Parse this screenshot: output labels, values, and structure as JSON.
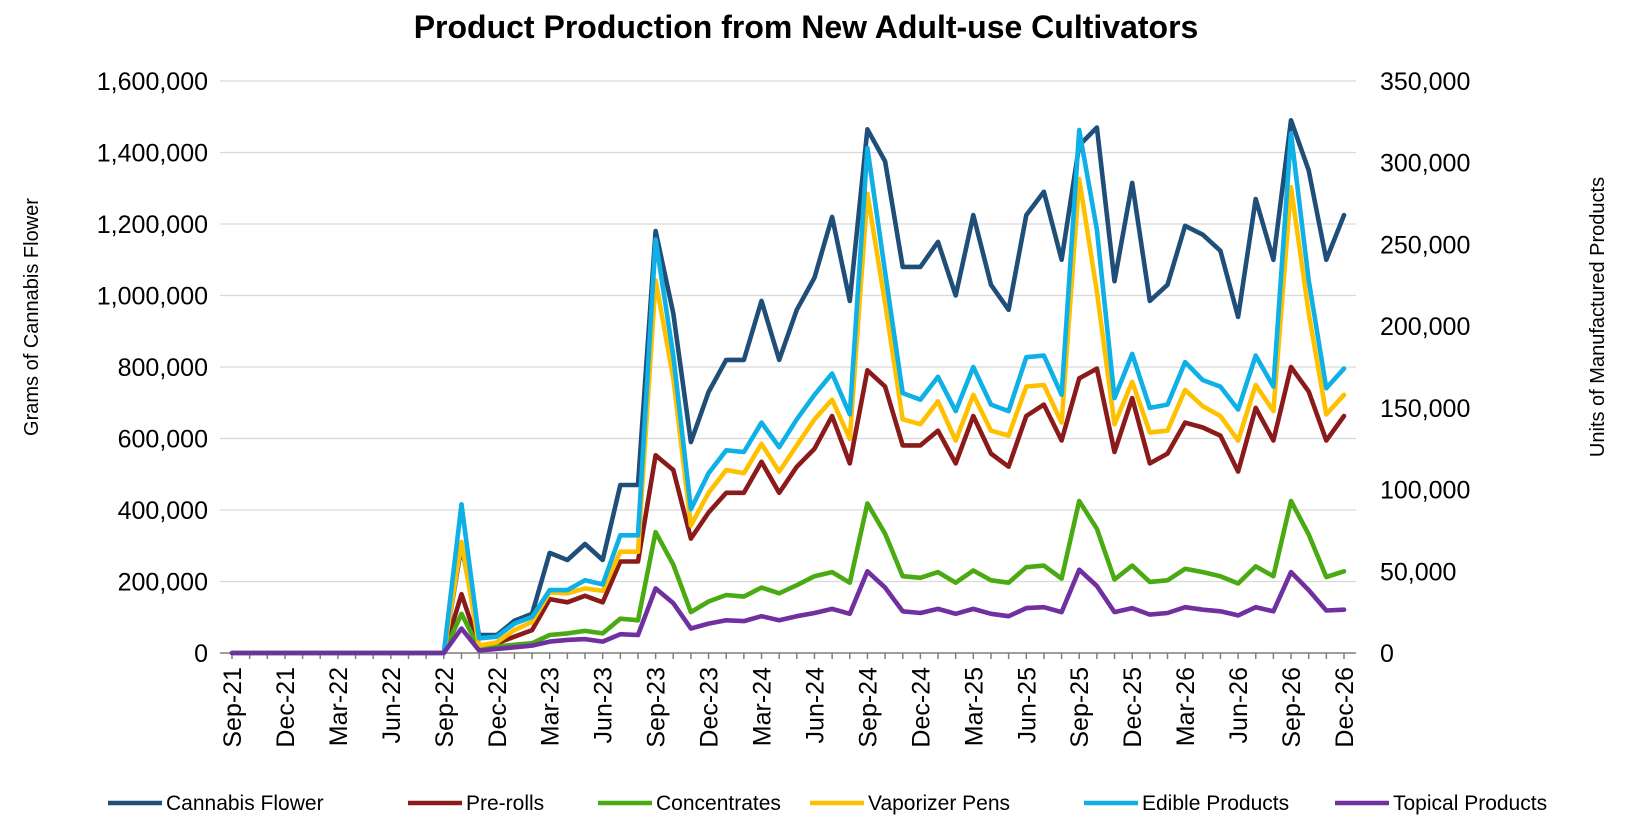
{
  "chart_data": {
    "type": "line",
    "title": "Product Production  from New Adult-use Cultivators",
    "ylabel_left": "Grams of Cannabis Flower",
    "ylabel_right": "Units of  Manufactured Products",
    "ylim_left": [
      0,
      1600000
    ],
    "ylim_right": [
      0,
      350000
    ],
    "yticks_left": [
      0,
      200000,
      400000,
      600000,
      800000,
      1000000,
      1200000,
      1400000,
      1600000
    ],
    "yticks_left_labels": [
      "0",
      "200,000",
      "400,000",
      "600,000",
      "800,000",
      "1,000,000",
      "1,200,000",
      "1,400,000",
      "1,600,000"
    ],
    "yticks_right": [
      0,
      50000,
      100000,
      150000,
      200000,
      250000,
      300000,
      350000
    ],
    "yticks_right_labels": [
      "0",
      "50,000",
      "100,000",
      "150,000",
      "200,000",
      "250,000",
      "300,000",
      "350,000"
    ],
    "grid": "horizontal",
    "legend_position": "bottom",
    "x": [
      "Sep-21",
      "Oct-21",
      "Nov-21",
      "Dec-21",
      "Jan-22",
      "Feb-22",
      "Mar-22",
      "Apr-22",
      "May-22",
      "Jun-22",
      "Jul-22",
      "Aug-22",
      "Sep-22",
      "Oct-22",
      "Nov-22",
      "Dec-22",
      "Jan-23",
      "Feb-23",
      "Mar-23",
      "Apr-23",
      "May-23",
      "Jun-23",
      "Jul-23",
      "Aug-23",
      "Sep-23",
      "Oct-23",
      "Nov-23",
      "Dec-23",
      "Jan-24",
      "Feb-24",
      "Mar-24",
      "Apr-24",
      "May-24",
      "Jun-24",
      "Jul-24",
      "Aug-24",
      "Sep-24",
      "Oct-24",
      "Nov-24",
      "Dec-24",
      "Jan-25",
      "Feb-25",
      "Mar-25",
      "Apr-25",
      "May-25",
      "Jun-25",
      "Jul-25",
      "Aug-25",
      "Sep-25",
      "Oct-25",
      "Nov-25",
      "Dec-25",
      "Jan-26",
      "Feb-26",
      "Mar-26",
      "Apr-26",
      "May-26",
      "Jun-26",
      "Jul-26",
      "Aug-26",
      "Sep-26",
      "Oct-26",
      "Nov-26",
      "Dec-26"
    ],
    "x_tick_labels": [
      "Sep-21",
      "Dec-21",
      "Mar-22",
      "Jun-22",
      "Sep-22",
      "Dec-22",
      "Mar-23",
      "Jun-23",
      "Sep-23",
      "Dec-23",
      "Mar-24",
      "Jun-24",
      "Sep-24",
      "Dec-24",
      "Mar-25",
      "Jun-25",
      "Sep-25",
      "Dec-25",
      "Mar-26",
      "Jun-26",
      "Sep-26",
      "Dec-26"
    ],
    "series": [
      {
        "name": "Cannabis Flower",
        "axis": "left",
        "color": "#1f4e79",
        "values": [
          0,
          0,
          0,
          0,
          0,
          0,
          0,
          0,
          0,
          0,
          0,
          0,
          0,
          300000,
          50000,
          50000,
          90000,
          110000,
          280000,
          260000,
          305000,
          260000,
          470000,
          470000,
          1180000,
          950000,
          590000,
          730000,
          820000,
          820000,
          985000,
          820000,
          960000,
          1050000,
          1220000,
          985000,
          1465000,
          1375000,
          1080000,
          1080000,
          1150000,
          1000000,
          1225000,
          1030000,
          960000,
          1225000,
          1290000,
          1100000,
          1420000,
          1470000,
          1040000,
          1315000,
          985000,
          1030000,
          1195000,
          1170000,
          1125000,
          940000,
          1270000,
          1100000,
          1490000,
          1350000,
          1100000,
          1225000
        ]
      },
      {
        "name": "Pre-rolls",
        "axis": "right",
        "color": "#8b1a1a",
        "values": [
          0,
          0,
          0,
          0,
          0,
          0,
          0,
          0,
          0,
          0,
          0,
          0,
          0,
          36000,
          4000,
          6000,
          10000,
          14000,
          33000,
          31000,
          35000,
          31000,
          56000,
          56000,
          121000,
          112000,
          70000,
          86000,
          98000,
          98000,
          117000,
          98000,
          114000,
          125000,
          145000,
          116000,
          173000,
          163000,
          127000,
          127000,
          136000,
          116000,
          145000,
          122000,
          114000,
          145000,
          152000,
          130000,
          168000,
          174000,
          123000,
          156000,
          116000,
          122000,
          141000,
          138000,
          133000,
          111000,
          150000,
          130000,
          175000,
          160000,
          130000,
          145000
        ]
      },
      {
        "name": "Concentrates",
        "axis": "right",
        "color": "#4aaa12",
        "values": [
          0,
          0,
          0,
          0,
          0,
          0,
          0,
          0,
          0,
          0,
          0,
          0,
          0,
          24000,
          3000,
          4000,
          5000,
          6000,
          11000,
          12000,
          13500,
          12000,
          21000,
          20000,
          74000,
          54000,
          25000,
          31500,
          35500,
          34500,
          40000,
          36500,
          41500,
          47000,
          49500,
          43000,
          91500,
          73000,
          47000,
          46000,
          49500,
          43000,
          50500,
          44500,
          43000,
          52500,
          53500,
          45500,
          93000,
          76000,
          45000,
          53500,
          43500,
          44500,
          51500,
          49500,
          47000,
          42500,
          53000,
          47000,
          93000,
          72500,
          46500,
          50000
        ]
      },
      {
        "name": "Vaporizer Pens",
        "axis": "right",
        "color": "#ffc000",
        "values": [
          0,
          0,
          0,
          0,
          0,
          0,
          0,
          0,
          0,
          0,
          0,
          0,
          0,
          68000,
          4500,
          6500,
          14000,
          19000,
          37000,
          36500,
          39500,
          38000,
          62000,
          62000,
          228000,
          168000,
          78000,
          98000,
          112000,
          110000,
          128000,
          111000,
          127000,
          143000,
          155000,
          131000,
          281000,
          214000,
          143000,
          140000,
          154000,
          130000,
          158000,
          136000,
          133000,
          163000,
          164000,
          141000,
          290000,
          221000,
          140000,
          166000,
          135000,
          136000,
          161000,
          151000,
          145000,
          130000,
          164000,
          148000,
          285000,
          208000,
          146000,
          158000
        ]
      },
      {
        "name": "Edible Products",
        "axis": "right",
        "color": "#0eb0e6",
        "values": [
          0,
          0,
          0,
          0,
          0,
          0,
          0,
          0,
          0,
          0,
          0,
          0,
          0,
          91000,
          9000,
          10000,
          18000,
          22000,
          38500,
          38500,
          44500,
          42000,
          72000,
          72000,
          253000,
          182000,
          88000,
          110000,
          124000,
          123000,
          141000,
          126000,
          143000,
          158000,
          171000,
          146000,
          309000,
          233000,
          159000,
          155000,
          169000,
          148000,
          175000,
          152000,
          148000,
          181000,
          182000,
          158000,
          320000,
          259000,
          156000,
          183000,
          150000,
          152000,
          178000,
          167000,
          163000,
          149000,
          182000,
          163000,
          318000,
          228000,
          162000,
          174000
        ]
      },
      {
        "name": "Topical Products",
        "axis": "right",
        "color": "#7030a0",
        "values": [
          0,
          0,
          0,
          0,
          0,
          0,
          0,
          0,
          0,
          0,
          0,
          0,
          0,
          15000,
          1500,
          2500,
          3500,
          4500,
          7000,
          8000,
          8500,
          7000,
          11500,
          11000,
          39500,
          30500,
          15000,
          18000,
          20000,
          19500,
          22500,
          20000,
          22500,
          24500,
          27000,
          24000,
          50000,
          40000,
          25500,
          24500,
          27000,
          24000,
          27000,
          24000,
          22500,
          27500,
          28000,
          25000,
          51000,
          41000,
          25000,
          27500,
          23500,
          24500,
          28000,
          26500,
          25500,
          23000,
          28000,
          25500,
          49500,
          38500,
          26000,
          26500
        ]
      }
    ]
  }
}
